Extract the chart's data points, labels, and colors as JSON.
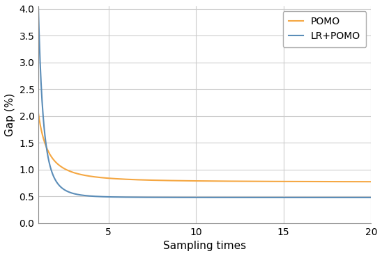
{
  "title": "",
  "xlabel": "Sampling times",
  "ylabel": "Gap (%)",
  "xlim": [
    1,
    20
  ],
  "ylim": [
    0.0,
    4.05
  ],
  "xticks": [
    5,
    10,
    15,
    20
  ],
  "yticks": [
    0.0,
    0.5,
    1.0,
    1.5,
    2.0,
    2.5,
    3.0,
    3.5,
    4.0
  ],
  "pomo_color": "#f5a742",
  "lr_pomo_color": "#5b8db8",
  "legend_labels": [
    "POMO",
    "LR+POMO"
  ],
  "background_color": "#ffffff",
  "grid_color": "#cccccc",
  "pomo_start": 2.05,
  "pomo_asymptote": 0.77,
  "lr_pomo_start": 4.0,
  "lr_pomo_asymptote": 0.48,
  "pomo_k": 1.8,
  "lr_pomo_k": 3.5
}
